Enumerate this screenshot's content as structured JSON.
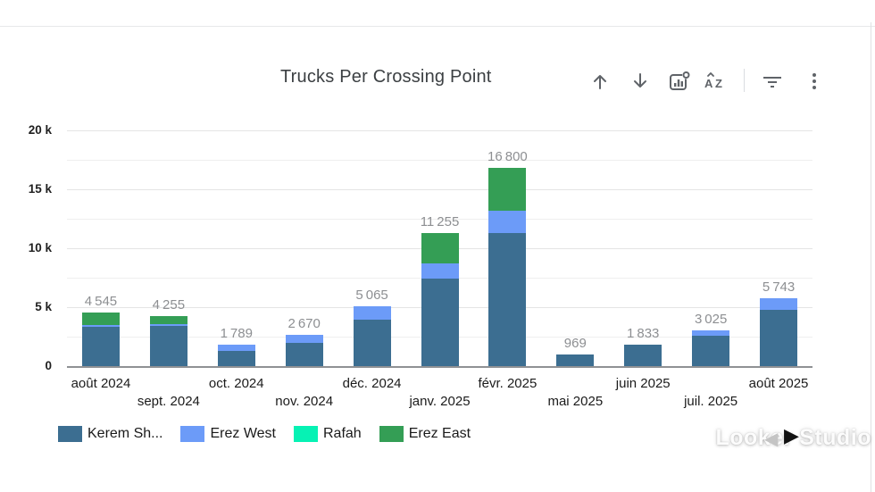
{
  "header": {
    "title": "Trucks Per Crossing Point",
    "icon_color": "#5f6368"
  },
  "chart_data": {
    "type": "bar",
    "stacked": true,
    "title": "Trucks Per Crossing Point",
    "categories": [
      "août 2024",
      "sept. 2024",
      "oct. 2024",
      "nov. 2024",
      "déc. 2024",
      "janv. 2025",
      "févr. 2025",
      "mai 2025",
      "juin 2025",
      "juil. 2025",
      "août 2025"
    ],
    "series": [
      {
        "name": "Kerem Sh...",
        "color": "#3c6e91",
        "values": [
          3300,
          3400,
          1300,
          1950,
          3950,
          7400,
          11300,
          969,
          1833,
          2600,
          4790
        ]
      },
      {
        "name": "Erez West",
        "color": "#6c9bf8",
        "values": [
          200,
          150,
          489,
          720,
          1115,
          1300,
          1900,
          0,
          0,
          425,
          953
        ]
      },
      {
        "name": "Rafah",
        "color": "#06f2b4",
        "values": [
          0,
          0,
          0,
          0,
          0,
          0,
          0,
          0,
          0,
          0,
          0
        ]
      },
      {
        "name": "Erez East",
        "color": "#349e55",
        "values": [
          1045,
          705,
          0,
          0,
          0,
          2555,
          3600,
          0,
          0,
          0,
          0
        ]
      }
    ],
    "totals": [
      4545,
      4255,
      1789,
      2670,
      5065,
      11255,
      16800,
      969,
      1833,
      3025,
      5743
    ],
    "total_labels": [
      "4 545",
      "4 255",
      "1 789",
      "2 670",
      "5 065",
      "11 255",
      "16 800",
      "969",
      "1 833",
      "3 025",
      "5 743"
    ],
    "yticks": [
      {
        "value": 0,
        "label": "0"
      },
      {
        "value": 5000,
        "label": "5 k"
      },
      {
        "value": 10000,
        "label": "10 k"
      },
      {
        "value": 15000,
        "label": "15 k"
      },
      {
        "value": 20000,
        "label": "20 k"
      }
    ],
    "ylim": [
      0,
      20000
    ],
    "grid": true,
    "minor_grid_step": 2500,
    "legend_position": "bottom"
  },
  "legend": {
    "items": [
      {
        "id": "kerem-shalom",
        "label": "Kerem Sh...",
        "color": "#3c6e91"
      },
      {
        "id": "erez-west",
        "label": "Erez West",
        "color": "#6c9bf8"
      },
      {
        "id": "rafah",
        "label": "Rafah",
        "color": "#06f2b4"
      },
      {
        "id": "erez-east",
        "label": "Erez East",
        "color": "#349e55"
      }
    ],
    "prev_arrow": "◀",
    "next_arrow": "▶"
  },
  "watermark": "Looker Studio"
}
